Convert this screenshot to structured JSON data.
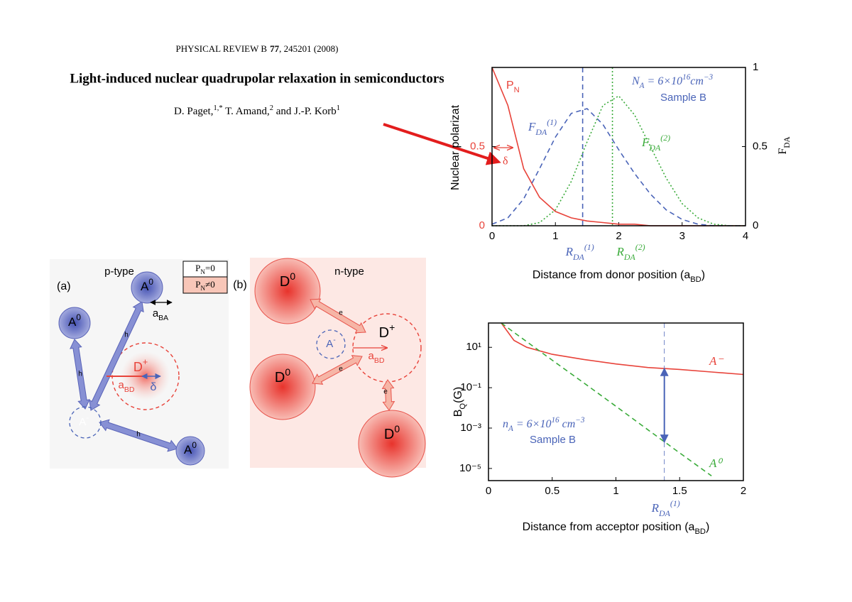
{
  "header": {
    "journal": "PHYSICAL REVIEW B",
    "volume": "77",
    "citation": ", 245201 (2008)",
    "title": "Light-induced nuclear quadrupolar relaxation in semiconductors",
    "authors": [
      {
        "t": "D. Paget,"
      },
      {
        "t": "1,*",
        "s": "sup"
      },
      {
        "t": " T. Amand,"
      },
      {
        "t": "2",
        "s": "sup"
      },
      {
        "t": " and J.-P. Korb"
      },
      {
        "t": "1",
        "s": "sup"
      }
    ]
  },
  "chart_data": [
    {
      "type": "line",
      "y_label": "Nuclear polarizat",
      "y2_label": [
        {
          "t": "F"
        },
        {
          "t": "DA",
          "s": "sub"
        }
      ],
      "x_label": [
        {
          "t": "Distance from donor position (a"
        },
        {
          "t": "BD",
          "s": "sub"
        },
        {
          "t": ")"
        }
      ],
      "x": [
        0,
        0.25,
        0.5,
        0.75,
        1,
        1.25,
        1.5,
        1.75,
        2,
        2.25,
        2.5,
        2.75,
        3,
        3.25,
        3.5,
        3.75,
        4
      ],
      "xlim": [
        0,
        4
      ],
      "xticks": [
        0,
        1,
        2,
        3,
        4
      ],
      "ylim": [
        0,
        1
      ],
      "yticks": [
        0,
        0.5
      ],
      "ytick_color": "#e8433a",
      "y2lim": [
        0,
        1
      ],
      "y2ticks": [
        0,
        0.5,
        1
      ],
      "series": [
        {
          "name": [
            {
              "t": "P"
            },
            {
              "t": "N",
              "s": "sub"
            }
          ],
          "color": "#e8433a",
          "dash": "solid",
          "values": [
            1,
            0.76,
            0.36,
            0.18,
            0.09,
            0.05,
            0.03,
            0.02,
            0.01,
            0.01,
            0,
            0,
            0,
            0,
            0,
            0,
            0
          ]
        },
        {
          "name": [
            {
              "t": "F"
            },
            {
              "t": "DA",
              "s": "sub"
            },
            {
              "t": "(1)",
              "s": "sup"
            }
          ],
          "color": "#4a64b8",
          "dash": "dashed",
          "axis": "y2",
          "values": [
            0.01,
            0.05,
            0.17,
            0.36,
            0.56,
            0.71,
            0.74,
            0.64,
            0.48,
            0.33,
            0.2,
            0.1,
            0.04,
            0.01,
            0,
            0,
            0
          ]
        },
        {
          "name": [
            {
              "t": "F"
            },
            {
              "t": "DA",
              "s": "sub"
            },
            {
              "t": "(2)",
              "s": "sup"
            }
          ],
          "color": "#3aab3a",
          "dash": "dotted",
          "axis": "y2",
          "values": [
            0,
            0,
            0,
            0.02,
            0.1,
            0.28,
            0.53,
            0.76,
            0.82,
            0.7,
            0.5,
            0.3,
            0.14,
            0.05,
            0.01,
            0,
            0
          ]
        }
      ],
      "vlines": [
        {
          "x": 1.43,
          "color": "#4a64b8",
          "dash": "dashed",
          "label": [
            {
              "t": "R"
            },
            {
              "t": "DA",
              "s": "sub"
            },
            {
              "t": "(1)",
              "s": "sup"
            }
          ]
        },
        {
          "x": 1.9,
          "color": "#3aab3a",
          "dash": "dotted",
          "label": [
            {
              "t": "R"
            },
            {
              "t": "DA",
              "s": "sub"
            },
            {
              "t": "(2)",
              "s": "sup"
            }
          ]
        }
      ],
      "annotations": [
        {
          "text": [
            {
              "t": "N"
            },
            {
              "t": "A",
              "s": "sub"
            },
            {
              "t": " = 6×10"
            },
            {
              "t": "16",
              "s": "sup"
            },
            {
              "t": "cm"
            },
            {
              "t": "−3",
              "s": "sup"
            }
          ],
          "color": "#4a64b8"
        },
        {
          "text": "Sample B",
          "color": "#4a64b8"
        },
        {
          "text": "δ",
          "color": "#e8433a"
        }
      ]
    },
    {
      "type": "line",
      "log_y": true,
      "y_label": [
        {
          "t": "B"
        },
        {
          "t": "Q",
          "s": "sub"
        },
        {
          "t": "(G)"
        }
      ],
      "x_label": [
        {
          "t": "Distance from acceptor position (a"
        },
        {
          "t": "BD",
          "s": "sub"
        },
        {
          "t": ")"
        }
      ],
      "x": [
        0.1,
        0.2,
        0.3,
        0.5,
        0.75,
        1,
        1.25,
        1.5,
        1.75,
        2
      ],
      "xlim": [
        0,
        2
      ],
      "xticks": [
        0,
        0.5,
        1,
        1.5,
        2
      ],
      "ylim": [
        2.5e-06,
        160
      ],
      "yticks": [
        {
          "value": 10,
          "label": "10¹"
        },
        {
          "value": 0.1,
          "label": "10⁻¹"
        },
        {
          "value": 0.001,
          "label": "10⁻³"
        },
        {
          "value": 1e-05,
          "label": "10⁻⁵"
        }
      ],
      "series": [
        {
          "name": "A⁻",
          "color": "#e8433a",
          "dash": "solid",
          "values": [
            160,
            22,
            10,
            4.5,
            2.5,
            1.5,
            1,
            0.8,
            0.6,
            0.45
          ]
        },
        {
          "name": "A⁰",
          "color": "#3aab3a",
          "dash": "dashed",
          "values": [
            160,
            55,
            19,
            2.3,
            0.17,
            0.012,
            0.00083,
            5.9e-05,
            4.3e-06,
            null
          ]
        }
      ],
      "vlines": [
        {
          "x": 1.38,
          "color": "#4a64b8",
          "dash": "dashed",
          "label": [
            {
              "t": "R"
            },
            {
              "t": "DA",
              "s": "sub"
            },
            {
              "t": "(1)",
              "s": "sup"
            }
          ]
        }
      ],
      "arrow": {
        "x": 1.38,
        "from": 0.9,
        "to": 0.0002,
        "color": "#4a64b8"
      },
      "annotations": [
        {
          "text": [
            {
              "t": "n"
            },
            {
              "t": "A",
              "s": "sub"
            },
            {
              "t": " = 6×10"
            },
            {
              "t": "16",
              "s": "sup"
            },
            {
              "t": " cm"
            },
            {
              "t": "−3",
              "s": "sup"
            }
          ],
          "color": "#4a64b8"
        },
        {
          "text": "Sample B",
          "color": "#4a64b8"
        }
      ]
    }
  ],
  "diagrams": [
    {
      "panel": "(a)",
      "doping": "p-type",
      "legend": [
        [
          {
            "t": "P"
          },
          {
            "t": "N",
            "s": "sub"
          },
          {
            "t": "=0"
          }
        ],
        [
          {
            "t": "P"
          },
          {
            "t": "N",
            "s": "sub"
          },
          {
            "t": "≠0"
          }
        ]
      ],
      "neutral": [
        [
          {
            "t": "A"
          },
          {
            "t": "0",
            "s": "sup"
          }
        ],
        [
          {
            "t": "A"
          },
          {
            "t": "0",
            "s": "sup"
          }
        ],
        [
          {
            "t": "A"
          },
          {
            "t": "0",
            "s": "sup"
          }
        ]
      ],
      "ionized_acceptor": [
        {
          "t": "A"
        },
        {
          "t": "-",
          "s": "sup"
        }
      ],
      "donor": [
        {
          "t": "D"
        },
        {
          "t": "+",
          "s": "sup"
        }
      ],
      "a_BA": [
        {
          "t": "a"
        },
        {
          "t": "BA",
          "s": "sub"
        }
      ],
      "a_BD": [
        {
          "t": "a"
        },
        {
          "t": "BD",
          "s": "sub"
        }
      ],
      "delta": "δ",
      "carriers": [
        "h",
        "h",
        "h"
      ]
    },
    {
      "panel": "(b)",
      "doping": "n-type",
      "neutral": [
        [
          {
            "t": "D"
          },
          {
            "t": "0",
            "s": "sup"
          }
        ],
        [
          {
            "t": "D"
          },
          {
            "t": "0",
            "s": "sup"
          }
        ],
        [
          {
            "t": "D"
          },
          {
            "t": "0",
            "s": "sup"
          }
        ]
      ],
      "donor": [
        {
          "t": "D"
        },
        {
          "t": "+",
          "s": "sup"
        }
      ],
      "ionized_acceptor": [
        {
          "t": "A"
        },
        {
          "t": "-",
          "s": "sup"
        }
      ],
      "a_BD": [
        {
          "t": "a"
        },
        {
          "t": "BD",
          "s": "sub"
        }
      ],
      "carriers": [
        "e",
        "e",
        "e"
      ]
    }
  ]
}
